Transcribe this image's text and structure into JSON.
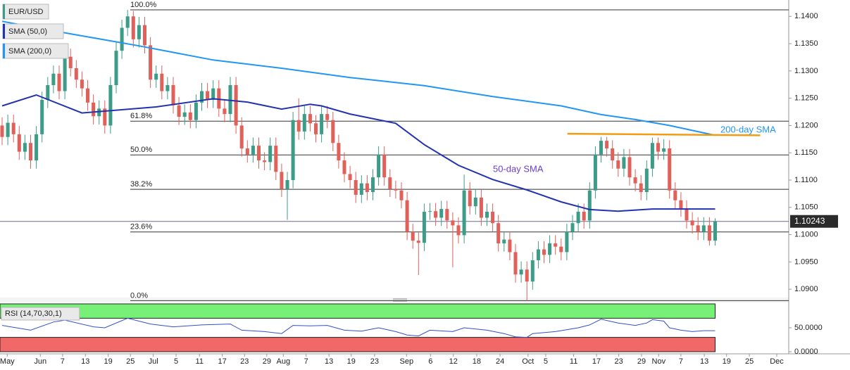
{
  "chart_data": [
    {
      "type": "candlestick",
      "series": [
        {
          "name": "EUR/USD",
          "up_color": "#3d9c87",
          "down_color": "#e0605a",
          "open": [
            1.12,
            1.1179,
            1.1205,
            1.1184,
            1.1152,
            1.1168,
            1.1136,
            1.1184,
            1.1247,
            1.1274,
            1.1295,
            1.1263,
            1.1326,
            1.1305,
            1.1284,
            1.1268,
            1.1242,
            1.1217,
            1.1231,
            1.12,
            1.1274,
            1.1337,
            1.1379,
            1.14,
            1.1358,
            1.1384,
            1.1347,
            1.1284,
            1.1295,
            1.1263,
            1.1274,
            1.1237,
            1.1216,
            1.1224,
            1.121,
            1.1242,
            1.1263,
            1.1247,
            1.1268,
            1.1231,
            1.1221,
            1.1274,
            1.12,
            1.1158,
            1.1147,
            1.1163,
            1.1136,
            1.1133,
            1.1163,
            1.1115,
            1.1084,
            1.11,
            1.121,
            1.1189,
            1.1221,
            1.1204,
            1.1184,
            1.1221,
            1.121,
            1.1168,
            1.1136,
            1.1111,
            1.11,
            1.1073,
            1.1094,
            1.1078,
            1.1105,
            1.1147,
            1.1105,
            1.1084,
            1.1081,
            1.1063,
            1.1005,
            1.0989,
            1.0985,
            1.1042,
            1.1043,
            1.1031,
            1.1047,
            1.1026,
            1.1017,
            1.0999,
            1.1081,
            1.1052,
            1.1068,
            1.1031,
            1.1042,
            1.1021,
            1.0984,
            1.0991,
            1.0968,
            1.0927,
            1.0936,
            1.0914,
            1.0953,
            1.0973,
            1.0963,
            1.0984,
            1.0978,
            1.0968,
            1.1005,
            1.1021,
            1.1042,
            1.1026,
            1.1081,
            1.1147,
            1.1172,
            1.1158,
            1.1136,
            1.1121,
            1.1142,
            1.1105,
            1.1094,
            1.1078,
            1.1121,
            1.1168,
            1.1152,
            1.1158,
            1.1081,
            1.1063,
            1.1048,
            1.1026,
            1.1017,
            1.1005,
            1.1017,
            1.0989
          ],
          "high": [
            1.1215,
            1.122,
            1.122,
            1.1199,
            1.1183,
            1.1183,
            1.1199,
            1.1262,
            1.1289,
            1.131,
            1.131,
            1.1341,
            1.1341,
            1.132,
            1.1299,
            1.1283,
            1.1257,
            1.1246,
            1.1246,
            1.1289,
            1.1352,
            1.1394,
            1.1412,
            1.141,
            1.1399,
            1.1399,
            1.1362,
            1.131,
            1.131,
            1.1289,
            1.1289,
            1.1252,
            1.1239,
            1.1239,
            1.1257,
            1.1278,
            1.1278,
            1.1283,
            1.1283,
            1.1246,
            1.1289,
            1.1289,
            1.1215,
            1.1173,
            1.1178,
            1.1178,
            1.1151,
            1.1178,
            1.1178,
            1.113,
            1.1115,
            1.1225,
            1.125,
            1.1236,
            1.1236,
            1.1219,
            1.1236,
            1.1236,
            1.1225,
            1.1183,
            1.1151,
            1.1126,
            1.1115,
            1.1109,
            1.1109,
            1.112,
            1.1162,
            1.1162,
            1.112,
            1.1099,
            1.1096,
            1.1078,
            1.102,
            1.1004,
            1.1057,
            1.1058,
            1.1058,
            1.1062,
            1.1062,
            1.1041,
            1.1032,
            1.111,
            1.1096,
            1.1083,
            1.1083,
            1.1057,
            1.1057,
            1.1036,
            1.1006,
            1.1006,
            1.0983,
            1.0951,
            1.0951,
            1.0968,
            1.0988,
            1.0988,
            1.0999,
            1.0999,
            1.0993,
            1.102,
            1.1036,
            1.1057,
            1.1057,
            1.1096,
            1.1162,
            1.1179,
            1.1179,
            1.1173,
            1.1151,
            1.1157,
            1.1157,
            1.112,
            1.1109,
            1.1136,
            1.1178,
            1.1178,
            1.1175,
            1.1173,
            1.1096,
            1.1078,
            1.1063,
            1.1041,
            1.1032,
            1.1032,
            1.1032,
            1.103
          ],
          "low": [
            1.1164,
            1.1164,
            1.1169,
            1.1137,
            1.1137,
            1.1121,
            1.1121,
            1.1169,
            1.1232,
            1.1259,
            1.1248,
            1.1248,
            1.129,
            1.1269,
            1.1253,
            1.1227,
            1.1202,
            1.1202,
            1.1185,
            1.1185,
            1.1259,
            1.1322,
            1.1364,
            1.1343,
            1.1343,
            1.1332,
            1.1269,
            1.1269,
            1.1248,
            1.1248,
            1.1222,
            1.1201,
            1.1201,
            1.1195,
            1.1195,
            1.1227,
            1.1232,
            1.1232,
            1.1216,
            1.1206,
            1.1206,
            1.1185,
            1.1143,
            1.1132,
            1.1132,
            1.1121,
            1.1118,
            1.1118,
            1.11,
            1.1069,
            1.1027,
            1.1085,
            1.1174,
            1.1174,
            1.1189,
            1.1169,
            1.1169,
            1.1195,
            1.1153,
            1.1121,
            1.1096,
            1.1085,
            1.1058,
            1.1058,
            1.1063,
            1.1063,
            1.109,
            1.109,
            1.1069,
            1.1066,
            1.1048,
            1.099,
            1.0974,
            1.0926,
            1.097,
            1.1027,
            1.1016,
            1.1016,
            1.1011,
            1.094,
            1.0984,
            1.0984,
            1.1037,
            1.1037,
            1.1016,
            1.1016,
            1.1006,
            1.0969,
            1.0969,
            1.0953,
            1.0912,
            1.0912,
            1.0879,
            1.0899,
            1.0938,
            1.0948,
            1.0948,
            1.0963,
            1.0953,
            1.0953,
            1.099,
            1.1006,
            1.1011,
            1.1011,
            1.1066,
            1.1132,
            1.1143,
            1.1121,
            1.1106,
            1.1106,
            1.109,
            1.1079,
            1.1063,
            1.1063,
            1.1106,
            1.1137,
            1.1137,
            1.1066,
            1.1048,
            1.1033,
            1.1011,
            1.1002,
            1.099,
            1.099,
            1.098,
            1.098
          ],
          "close": [
            1.1179,
            1.1205,
            1.1184,
            1.1152,
            1.1168,
            1.1136,
            1.1184,
            1.1247,
            1.1274,
            1.1295,
            1.1263,
            1.1326,
            1.1305,
            1.1284,
            1.1268,
            1.1242,
            1.1217,
            1.1231,
            1.12,
            1.1274,
            1.1337,
            1.1379,
            1.14,
            1.1358,
            1.1384,
            1.1347,
            1.1284,
            1.1295,
            1.1263,
            1.1274,
            1.1237,
            1.1216,
            1.1224,
            1.121,
            1.1242,
            1.1263,
            1.1247,
            1.1268,
            1.1231,
            1.1221,
            1.1274,
            1.12,
            1.1158,
            1.1147,
            1.1163,
            1.1136,
            1.1133,
            1.1163,
            1.1115,
            1.1084,
            1.11,
            1.121,
            1.1189,
            1.1221,
            1.1204,
            1.1184,
            1.1221,
            1.121,
            1.1168,
            1.1136,
            1.1111,
            1.11,
            1.1073,
            1.1094,
            1.1078,
            1.1105,
            1.1147,
            1.1105,
            1.1084,
            1.1081,
            1.1063,
            1.1005,
            1.0989,
            1.0985,
            1.1042,
            1.1043,
            1.1031,
            1.1047,
            1.1026,
            1.1017,
            1.0999,
            1.1081,
            1.1052,
            1.1068,
            1.1031,
            1.1042,
            1.1021,
            1.0984,
            1.0991,
            1.0968,
            1.0927,
            1.0936,
            1.0914,
            1.0953,
            1.0973,
            1.0963,
            1.0984,
            1.0978,
            1.0968,
            1.1005,
            1.1021,
            1.1042,
            1.1026,
            1.1081,
            1.1147,
            1.1172,
            1.1158,
            1.1136,
            1.1121,
            1.1142,
            1.1105,
            1.1094,
            1.1078,
            1.1121,
            1.1168,
            1.1152,
            1.1158,
            1.1081,
            1.1063,
            1.1048,
            1.1026,
            1.1017,
            1.1005,
            1.1017,
            1.0989,
            1.1024
          ]
        },
        {
          "name": "SMA (50,0)",
          "color": "#2233b0",
          "x": [
            0,
            6,
            14,
            27,
            37,
            43,
            49,
            54,
            56,
            61,
            69,
            74,
            80,
            86,
            92,
            98,
            103,
            108,
            114,
            125
          ],
          "values": [
            1.1236,
            1.1256,
            1.1223,
            1.1234,
            1.1249,
            1.1243,
            1.123,
            1.1239,
            1.1236,
            1.1221,
            1.1204,
            1.1165,
            1.1127,
            1.1101,
            1.1082,
            1.106,
            1.1046,
            1.1043,
            1.1047,
            1.1047
          ]
        },
        {
          "name": "SMA (200,0)",
          "color": "#2196f3",
          "x": [
            0,
            12,
            24,
            37,
            49,
            61,
            74,
            86,
            98,
            105,
            111,
            117,
            125
          ],
          "values": [
            1.1391,
            1.1368,
            1.1346,
            1.132,
            1.1305,
            1.1288,
            1.1273,
            1.1253,
            1.1236,
            1.122,
            1.1211,
            1.12,
            1.1182
          ]
        }
      ],
      "annotations": [
        {
          "text": "50-day SMA",
          "color": "#6a3fd1"
        },
        {
          "text": "200-day SMA",
          "color": "#2196f3"
        }
      ],
      "fib_levels": [
        {
          "label": "100.0%",
          "value": 1.1412
        },
        {
          "label": "61.8%",
          "value": 1.1208
        },
        {
          "label": "50.0%",
          "value": 1.1146
        },
        {
          "label": "38.2%",
          "value": 1.1083
        },
        {
          "label": "23.6%",
          "value": 1.1005
        },
        {
          "label": "0.0%",
          "value": 1.0879
        }
      ],
      "resistance": {
        "x": [
          99.1,
          132.9
        ],
        "values": [
          1.1185,
          1.1182
        ],
        "color": "#f39c12"
      },
      "last_value": 1.10243,
      "xlim": [
        -0.37,
        137.9
      ],
      "ylim": [
        1.0886,
        1.143
      ],
      "yticks": [
        {
          "value": 1.14,
          "label": "1.1400"
        },
        {
          "value": 1.135,
          "label": "1.1350"
        },
        {
          "value": 1.13,
          "label": "1.1300"
        },
        {
          "value": 1.125,
          "label": "1.1250"
        },
        {
          "value": 1.12,
          "label": "1.1200"
        },
        {
          "value": 1.115,
          "label": "1.1150"
        },
        {
          "value": 1.11,
          "label": "1.1100"
        },
        {
          "value": 1.105,
          "label": "1.1050"
        },
        {
          "value": 1.1,
          "label": "1.1000"
        },
        {
          "value": 1.095,
          "label": "1.0950"
        },
        {
          "value": 1.09,
          "label": "1.0900"
        }
      ],
      "xticks": [
        {
          "value": 0.9,
          "label": "May"
        },
        {
          "value": 6.7,
          "label": "Jun"
        },
        {
          "value": 10.6,
          "label": "7"
        },
        {
          "value": 14.6,
          "label": "13"
        },
        {
          "value": 18.6,
          "label": "19"
        },
        {
          "value": 22.5,
          "label": "25"
        },
        {
          "value": 26.5,
          "label": "Jul"
        },
        {
          "value": 30.5,
          "label": "5"
        },
        {
          "value": 34.6,
          "label": "11"
        },
        {
          "value": 38.6,
          "label": "17"
        },
        {
          "value": 42.5,
          "label": "23"
        },
        {
          "value": 46.4,
          "label": "29"
        },
        {
          "value": 49.3,
          "label": "Aug"
        },
        {
          "value": 53.3,
          "label": "7"
        },
        {
          "value": 57.3,
          "label": "13"
        },
        {
          "value": 61.2,
          "label": "19"
        },
        {
          "value": 65.3,
          "label": "23"
        },
        {
          "value": 70.9,
          "label": "Sep"
        },
        {
          "value": 75.1,
          "label": "6"
        },
        {
          "value": 79.1,
          "label": "12"
        },
        {
          "value": 83.2,
          "label": "18"
        },
        {
          "value": 87.3,
          "label": "24"
        },
        {
          "value": 92.2,
          "label": "Oct"
        },
        {
          "value": 95.3,
          "label": "5"
        },
        {
          "value": 100.2,
          "label": "11"
        },
        {
          "value": 104.2,
          "label": "17"
        },
        {
          "value": 108.1,
          "label": "23"
        },
        {
          "value": 112.1,
          "label": "29"
        },
        {
          "value": 115.1,
          "label": "Nov"
        },
        {
          "value": 119,
          "label": "7"
        },
        {
          "value": 123.1,
          "label": "13"
        },
        {
          "value": 127,
          "label": "19"
        },
        {
          "value": 131,
          "label": "25"
        },
        {
          "value": 135.8,
          "label": "Dec"
        }
      ]
    },
    {
      "type": "line",
      "title": "RSI (14,70,30,1)",
      "color": "#3050c8",
      "overbought": 70,
      "oversold": 30,
      "overbought_color": "#77f077",
      "oversold_color": "#f06868",
      "x": [
        0,
        5,
        9,
        11,
        16,
        18,
        22,
        26,
        30,
        35,
        40,
        42,
        46,
        49,
        51,
        54,
        57,
        60,
        63,
        66,
        69,
        71,
        73,
        75,
        79,
        81,
        85,
        88,
        90,
        92,
        93,
        97,
        101,
        103,
        105,
        108,
        111,
        113,
        114,
        116,
        117,
        119,
        121,
        123,
        125
      ],
      "values": [
        55,
        45,
        62,
        66,
        52,
        50,
        70,
        58,
        52,
        56,
        58,
        45,
        42,
        38,
        55,
        54,
        55,
        45,
        43,
        50,
        42,
        35,
        33,
        45,
        42,
        50,
        45,
        38,
        31,
        30,
        38,
        42,
        50,
        56,
        68,
        60,
        55,
        60,
        67,
        64,
        50,
        45,
        42,
        44,
        44
      ],
      "xlim": [
        -0.37,
        137.9
      ],
      "ylim": [
        0,
        100
      ],
      "yticks": [
        {
          "value": 0,
          "label": "0.0000"
        },
        {
          "value": 50,
          "label": "50.0000"
        }
      ]
    }
  ]
}
